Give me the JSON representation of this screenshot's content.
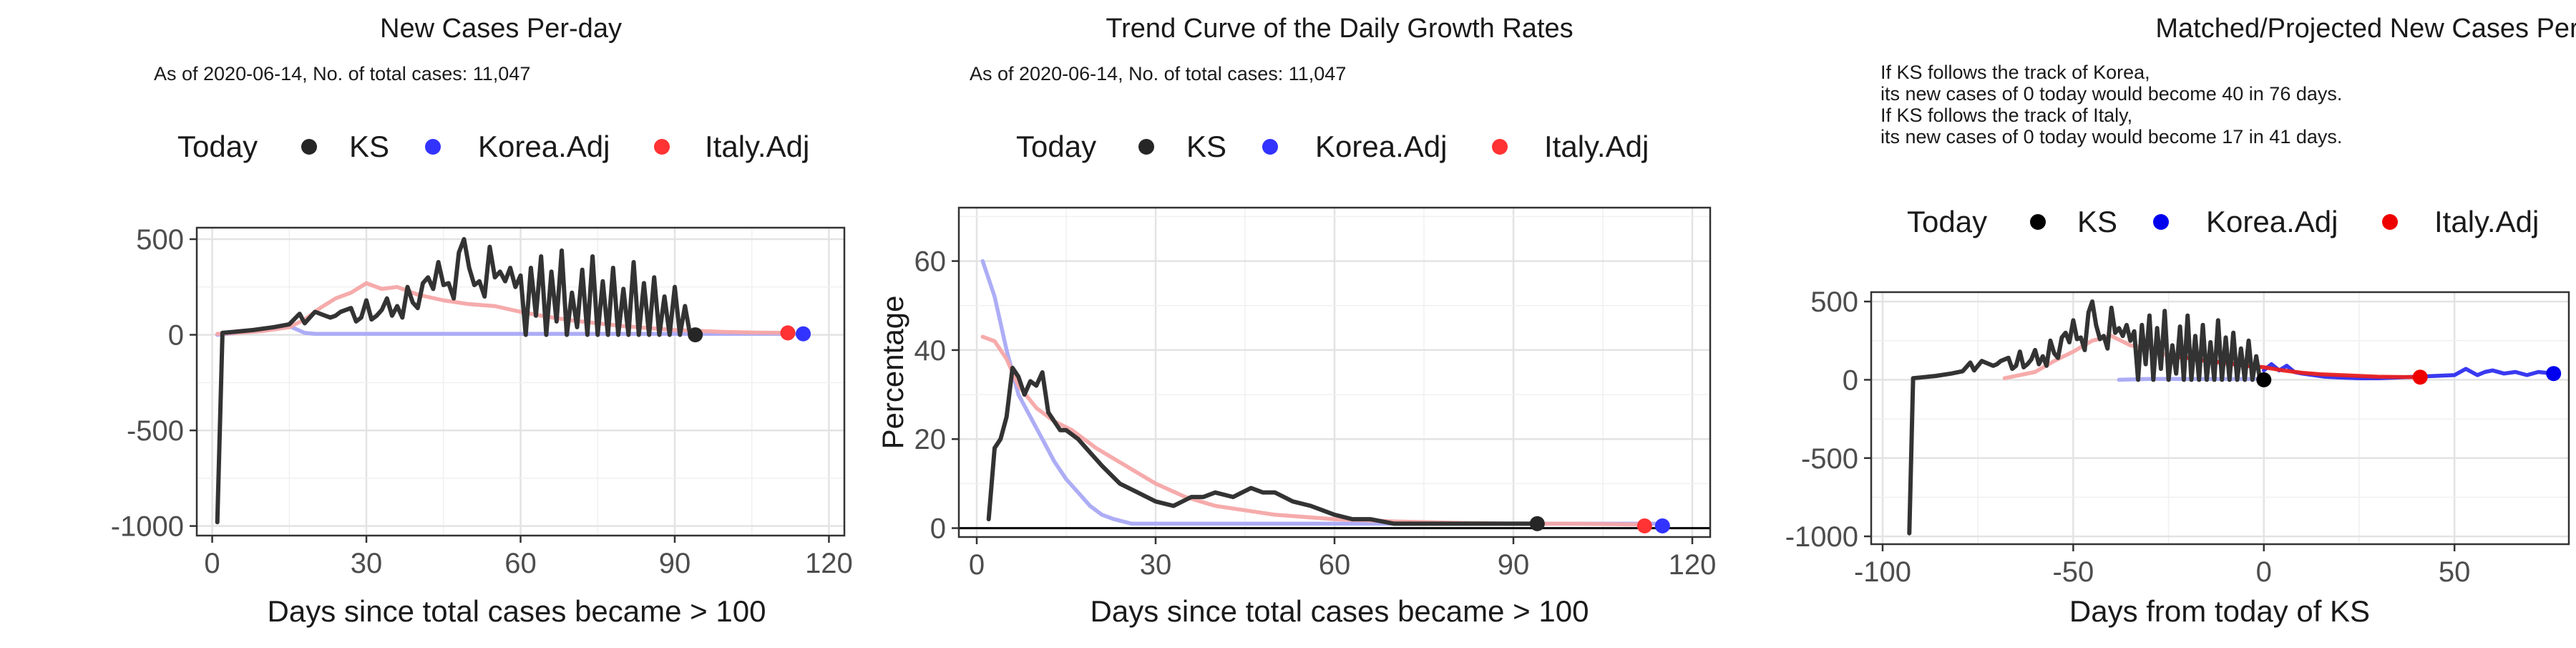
{
  "chart_data": [
    {
      "type": "line",
      "title": "New Cases Per-day",
      "subtitle": [
        "As of 2020-06-14, No. of total cases: 11,047"
      ],
      "xlabel": "Days since total cases became > 100",
      "ylabel": "",
      "xlim": [
        -3,
        123
      ],
      "ylim": [
        -1050,
        560
      ],
      "xticks": [
        0,
        30,
        60,
        90,
        120
      ],
      "yticks": [
        -1000,
        -500,
        0,
        500
      ],
      "grid": true,
      "legend": {
        "position": "top",
        "title": "Today",
        "entries": [
          "KS",
          "Korea.Adj",
          "Italy.Adj"
        ]
      },
      "series": [
        {
          "name": "Korea.Adj",
          "color": "#a9a9f5",
          "x": [
            1,
            5,
            10,
            15,
            18,
            20,
            30,
            40,
            50,
            60,
            70,
            80,
            90,
            100,
            110,
            115
          ],
          "y": [
            0,
            10,
            30,
            45,
            10,
            5,
            5,
            5,
            5,
            5,
            5,
            5,
            5,
            5,
            5,
            5
          ]
        },
        {
          "name": "Italy.Adj",
          "color": "#f6a7a7",
          "x": [
            1,
            5,
            10,
            15,
            18,
            21,
            24,
            27,
            30,
            33,
            36,
            40,
            45,
            50,
            55,
            60,
            65,
            70,
            75,
            80,
            85,
            90,
            95,
            100,
            105,
            112
          ],
          "y": [
            5,
            10,
            20,
            40,
            80,
            140,
            190,
            220,
            270,
            240,
            250,
            210,
            180,
            160,
            150,
            120,
            95,
            75,
            60,
            45,
            35,
            25,
            20,
            15,
            12,
            10
          ]
        },
        {
          "name": "KS",
          "color": "#333333",
          "x": [
            1,
            2,
            4,
            8,
            12,
            15,
            17,
            18,
            20,
            22,
            23,
            24,
            25,
            27,
            28,
            29,
            30,
            31,
            32,
            33,
            34,
            35,
            36,
            37,
            38,
            39,
            40,
            41,
            42,
            43,
            44,
            45,
            46,
            47,
            48,
            49,
            50,
            51,
            52,
            53,
            54,
            55,
            56,
            57,
            58,
            59,
            60,
            61,
            62,
            63,
            64,
            65,
            66,
            67,
            68,
            69,
            70,
            71,
            72,
            73,
            74,
            75,
            76,
            77,
            78,
            79,
            80,
            81,
            82,
            83,
            84,
            85,
            86,
            87,
            88,
            89,
            90,
            91,
            92,
            93,
            94
          ],
          "y": [
            -980,
            10,
            15,
            25,
            40,
            55,
            110,
            60,
            120,
            100,
            90,
            100,
            120,
            140,
            70,
            90,
            180,
            80,
            100,
            130,
            190,
            100,
            150,
            90,
            250,
            170,
            140,
            270,
            300,
            240,
            380,
            260,
            270,
            190,
            430,
            500,
            350,
            260,
            280,
            200,
            460,
            300,
            330,
            280,
            350,
            250,
            310,
            0,
            350,
            100,
            410,
            0,
            330,
            70,
            440,
            0,
            220,
            40,
            340,
            0,
            410,
            0,
            280,
            0,
            350,
            0,
            240,
            0,
            380,
            0,
            270,
            0,
            300,
            0,
            200,
            0,
            250,
            0,
            150,
            0,
            0
          ]
        }
      ],
      "points": [
        {
          "series": "KS",
          "x": 94,
          "y": 0,
          "color": "#262626"
        },
        {
          "series": "Italy.Adj",
          "x": 112,
          "y": 10,
          "color": "#ff3333"
        },
        {
          "series": "Korea.Adj",
          "x": 115,
          "y": 5,
          "color": "#3333ff"
        }
      ]
    },
    {
      "type": "line",
      "title": "Trend Curve of the Daily Growth Rates",
      "subtitle": [
        "As of 2020-06-14, No. of total cases: 11,047"
      ],
      "xlabel": "Days since total cases became > 100",
      "ylabel": "Percentage",
      "xlim": [
        -3,
        123
      ],
      "ylim": [
        -2,
        72
      ],
      "xticks": [
        0,
        30,
        60,
        90,
        120
      ],
      "yticks": [
        0,
        20,
        40,
        60
      ],
      "grid": true,
      "hline": 0,
      "legend": {
        "position": "top",
        "title": "Today",
        "entries": [
          "KS",
          "Korea.Adj",
          "Italy.Adj"
        ]
      },
      "series": [
        {
          "name": "Korea.Adj",
          "color": "#a9a9f5",
          "x": [
            1,
            3,
            5,
            7,
            9,
            11,
            13,
            15,
            17,
            19,
            21,
            23,
            26,
            30,
            40,
            60,
            80,
            100,
            115
          ],
          "y": [
            60,
            52,
            40,
            30,
            25,
            20,
            15,
            11,
            8,
            5,
            3,
            2,
            1,
            1,
            1,
            1,
            1,
            1,
            1
          ]
        },
        {
          "name": "Italy.Adj",
          "color": "#f6a7a7",
          "x": [
            1,
            3,
            5,
            7,
            10,
            13,
            16,
            20,
            25,
            30,
            35,
            40,
            45,
            50,
            55,
            60,
            70,
            80,
            90,
            100,
            112
          ],
          "y": [
            43,
            42,
            38,
            32,
            27,
            24,
            22,
            18,
            14,
            10,
            7,
            5,
            4,
            3,
            2.5,
            2,
            1.5,
            1.2,
            1,
            1,
            0.8
          ]
        },
        {
          "name": "KS",
          "color": "#333333",
          "x": [
            2,
            3,
            4,
            5,
            6,
            7,
            8,
            9,
            10,
            11,
            12,
            13,
            14,
            15,
            17,
            19,
            21,
            24,
            27,
            30,
            33,
            36,
            38,
            40,
            43,
            46,
            48,
            50,
            53,
            56,
            58,
            60,
            63,
            66,
            70,
            75,
            80,
            85,
            90,
            94
          ],
          "y": [
            2,
            18,
            20,
            25,
            36,
            34,
            30,
            33,
            32,
            35,
            26,
            24,
            22,
            22,
            20,
            17,
            14,
            10,
            8,
            6,
            5,
            7,
            7,
            8,
            7,
            9,
            8,
            8,
            6,
            5,
            4,
            3,
            2,
            2,
            1,
            1,
            1,
            1,
            1,
            1
          ]
        }
      ],
      "points": [
        {
          "series": "KS",
          "x": 94,
          "y": 1,
          "color": "#262626"
        },
        {
          "series": "Italy.Adj",
          "x": 112,
          "y": 0.5,
          "color": "#ff3333"
        },
        {
          "series": "Korea.Adj",
          "x": 115,
          "y": 0.5,
          "color": "#3333ff"
        }
      ]
    },
    {
      "type": "line",
      "title": "Matched/Projected New Cases Per-day",
      "subtitle": [
        "If KS follows the track of Korea,",
        "its new cases of 0 today would become 40 in 76 days.",
        "If KS follows the track of Italy,",
        "its new cases of 0 today would become 17 in 41 days."
      ],
      "xlabel": "Days from today of KS",
      "ylabel": "",
      "xlim": [
        -103,
        80
      ],
      "ylim": [
        -1050,
        560
      ],
      "xticks": [
        -100,
        -50,
        0,
        50
      ],
      "yticks": [
        -1000,
        -500,
        0,
        500
      ],
      "grid": true,
      "legend": {
        "position": "top",
        "title": "Today",
        "entries": [
          "KS",
          "Korea.Adj",
          "Italy.Adj"
        ]
      },
      "series": [
        {
          "name": "Korea.Adj",
          "color": "#a9a9f5",
          "x": [
            -38,
            -30,
            -20,
            -10,
            0
          ],
          "y": [
            0,
            5,
            5,
            5,
            5
          ]
        },
        {
          "name": "Italy.Adj",
          "color": "#f6a7a7",
          "x": [
            -68,
            -60,
            -55,
            -50,
            -45,
            -40,
            -35,
            -30,
            -25,
            -20,
            -15,
            -10,
            -5,
            0
          ],
          "y": [
            10,
            50,
            120,
            180,
            250,
            280,
            220,
            200,
            150,
            140,
            120,
            100,
            90,
            80
          ]
        },
        {
          "name": "Korea.Adj",
          "color": "#2e2ef0",
          "x": [
            0,
            2,
            4,
            6,
            8,
            10,
            13,
            16,
            20,
            25,
            30,
            35,
            40,
            45,
            50,
            53,
            56,
            58,
            60,
            63,
            66,
            69,
            72,
            76
          ],
          "y": [
            60,
            100,
            60,
            90,
            50,
            40,
            30,
            20,
            15,
            10,
            10,
            15,
            20,
            25,
            30,
            70,
            30,
            50,
            60,
            40,
            50,
            30,
            50,
            40
          ]
        },
        {
          "name": "Italy.Adj",
          "color": "#e82020",
          "x": [
            -25,
            -20,
            -15,
            -10,
            -5,
            0,
            5,
            10,
            15,
            20,
            25,
            30,
            35,
            41
          ],
          "y": [
            150,
            140,
            120,
            110,
            90,
            80,
            60,
            45,
            35,
            30,
            25,
            20,
            18,
            17
          ]
        },
        {
          "name": "KS",
          "color": "#333333",
          "x": [
            -93,
            -92,
            -90,
            -86,
            -82,
            -79,
            -77,
            -76,
            -74,
            -72,
            -71,
            -70,
            -69,
            -67,
            -66,
            -65,
            -64,
            -63,
            -62,
            -61,
            -60,
            -59,
            -58,
            -57,
            -56,
            -55,
            -54,
            -53,
            -52,
            -51,
            -50,
            -49,
            -48,
            -47,
            -46,
            -45,
            -44,
            -43,
            -42,
            -41,
            -40,
            -39,
            -38,
            -37,
            -36,
            -35,
            -34,
            -33,
            -32,
            -31,
            -30,
            -29,
            -28,
            -27,
            -26,
            -25,
            -24,
            -23,
            -22,
            -21,
            -20,
            -19,
            -18,
            -17,
            -16,
            -15,
            -14,
            -13,
            -12,
            -11,
            -10,
            -9,
            -8,
            -7,
            -6,
            -5,
            -4,
            -3,
            -2,
            -1,
            0
          ],
          "y": [
            -980,
            10,
            15,
            25,
            40,
            55,
            110,
            60,
            120,
            100,
            90,
            100,
            120,
            140,
            70,
            90,
            180,
            80,
            100,
            130,
            190,
            100,
            150,
            90,
            250,
            170,
            140,
            270,
            300,
            240,
            380,
            260,
            270,
            190,
            430,
            500,
            350,
            260,
            280,
            200,
            460,
            300,
            330,
            280,
            350,
            250,
            310,
            0,
            350,
            100,
            410,
            0,
            330,
            70,
            440,
            0,
            220,
            40,
            340,
            0,
            410,
            0,
            280,
            0,
            350,
            0,
            240,
            0,
            380,
            0,
            270,
            0,
            300,
            0,
            200,
            0,
            250,
            0,
            150,
            0,
            0
          ]
        }
      ],
      "points": [
        {
          "series": "KS",
          "x": 0,
          "y": 0,
          "color": "#000000"
        },
        {
          "series": "Italy.Adj",
          "x": 41,
          "y": 17,
          "color": "#ee0000"
        },
        {
          "series": "Korea.Adj",
          "x": 76,
          "y": 40,
          "color": "#0000ee"
        }
      ]
    }
  ],
  "legend_colors": {
    "KS": "#262626",
    "Korea.Adj": "#3333ff",
    "Italy.Adj": "#ff3333"
  },
  "legend_colors_panel3": {
    "KS": "#000000",
    "Korea.Adj": "#0000ee",
    "Italy.Adj": "#ee0000"
  }
}
